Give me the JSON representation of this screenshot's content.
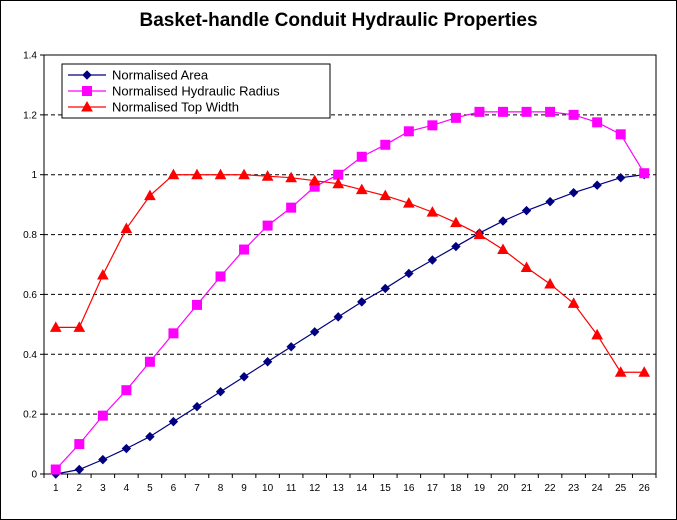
{
  "chart_data": {
    "type": "line",
    "title": "Basket-handle Conduit Hydraulic Properties",
    "xlabel": "",
    "ylabel": "",
    "categories": [
      "1",
      "2",
      "3",
      "4",
      "5",
      "6",
      "7",
      "8",
      "9",
      "10",
      "11",
      "12",
      "13",
      "14",
      "15",
      "16",
      "17",
      "18",
      "19",
      "20",
      "21",
      "22",
      "23",
      "24",
      "25",
      "26"
    ],
    "ylim": [
      0,
      1.4
    ],
    "yticks": [
      "0",
      "0.2",
      "0.4",
      "0.6",
      "0.8",
      "1",
      "1.2",
      "1.4"
    ],
    "grid": "horizontal dashed (0.2 to 1.2)",
    "legend_position": "top-left",
    "series": [
      {
        "name": "Normalised Area",
        "color": "#000080",
        "marker": "diamond",
        "values": [
          0.0,
          0.015,
          0.048,
          0.085,
          0.125,
          0.175,
          0.225,
          0.275,
          0.325,
          0.375,
          0.425,
          0.475,
          0.525,
          0.575,
          0.62,
          0.67,
          0.715,
          0.76,
          0.805,
          0.845,
          0.88,
          0.91,
          0.94,
          0.965,
          0.99,
          1.0
        ]
      },
      {
        "name": "Normalised Hydraulic Radius",
        "color": "#FF00FF",
        "marker": "square",
        "values": [
          0.015,
          0.1,
          0.195,
          0.28,
          0.375,
          0.47,
          0.565,
          0.66,
          0.75,
          0.83,
          0.89,
          0.96,
          1.0,
          1.06,
          1.1,
          1.145,
          1.165,
          1.19,
          1.21,
          1.21,
          1.21,
          1.21,
          1.2,
          1.175,
          1.135,
          1.005
        ]
      },
      {
        "name": "Normalised Top Width",
        "color": "#FF0000",
        "marker": "triangle",
        "values": [
          0.49,
          0.49,
          0.665,
          0.82,
          0.93,
          1.0,
          1.0,
          1.0,
          1.0,
          0.995,
          0.99,
          0.98,
          0.97,
          0.95,
          0.93,
          0.905,
          0.875,
          0.84,
          0.8,
          0.75,
          0.69,
          0.635,
          0.57,
          0.465,
          0.34,
          0.34
        ]
      }
    ]
  }
}
